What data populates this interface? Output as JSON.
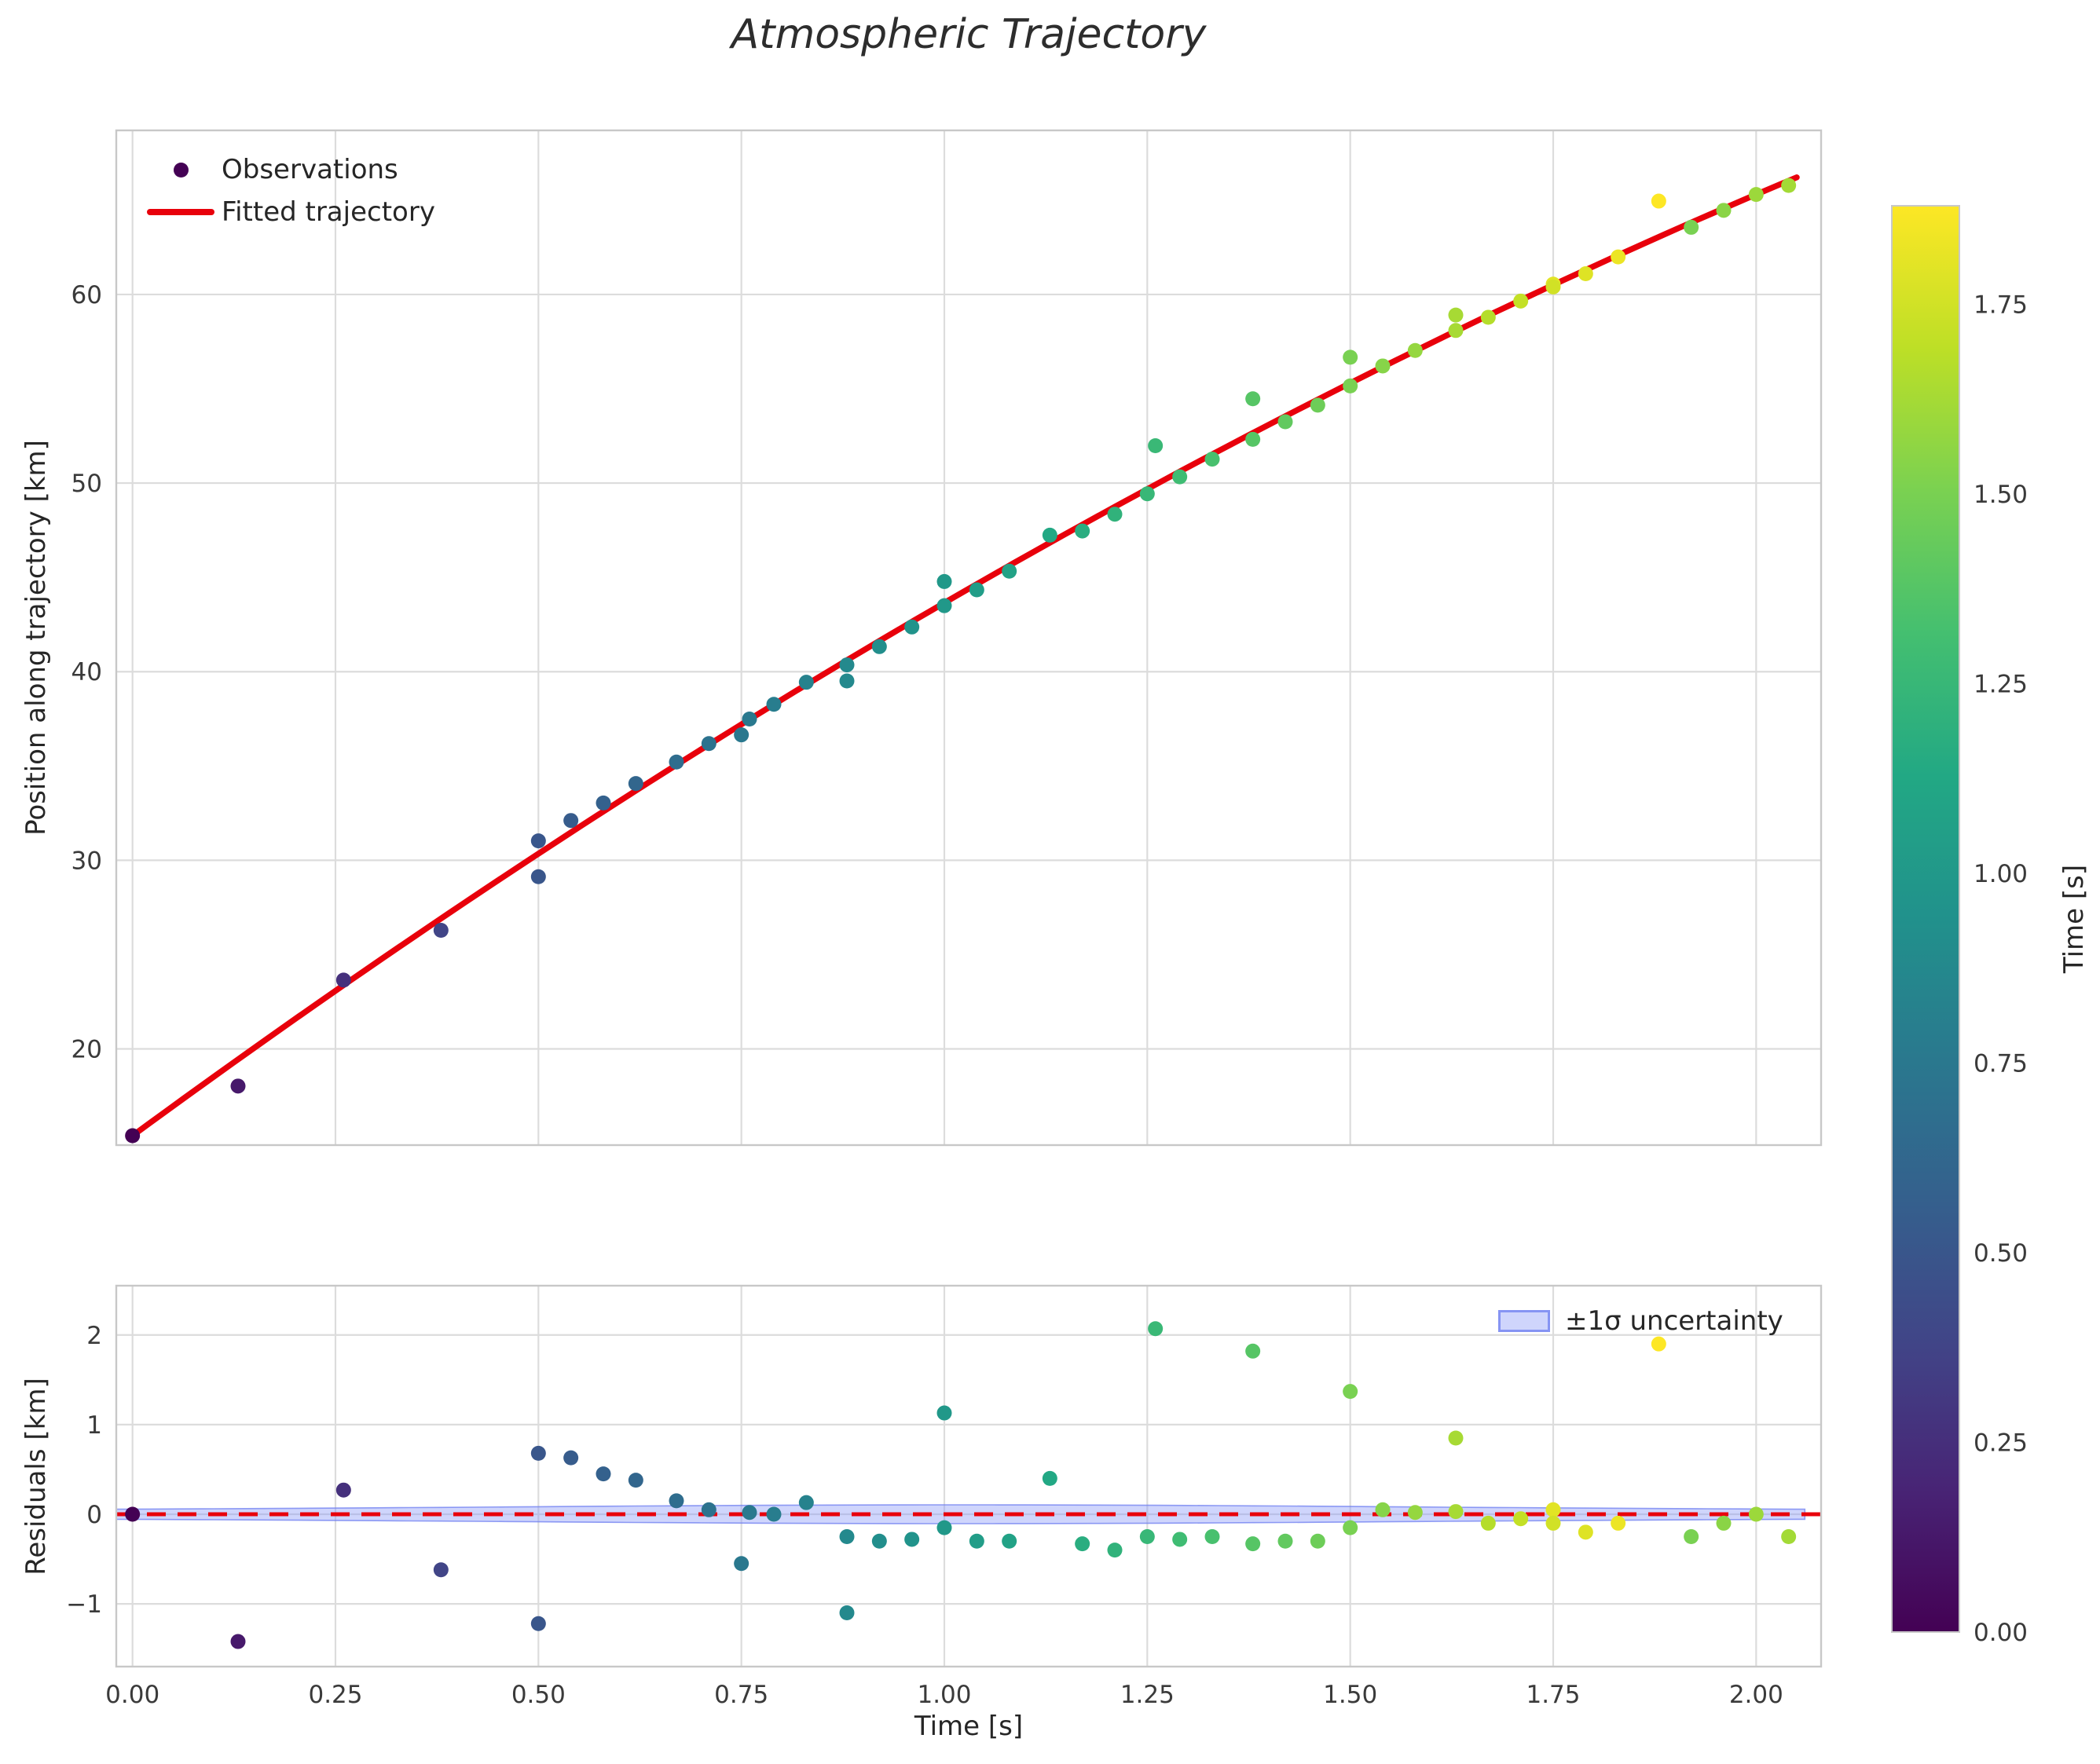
{
  "chart_data": {
    "type": "scatter",
    "title": "Atmospheric Trajectory",
    "xlabel": "Time [s]",
    "xticks": [
      0.0,
      0.25,
      0.5,
      0.75,
      1.0,
      1.25,
      1.5,
      1.75,
      2.0
    ],
    "xlim": [
      -0.02,
      2.08
    ],
    "main": {
      "ylabel": "Position along trajectory [km]",
      "yticks": [
        20,
        30,
        40,
        50,
        60
      ],
      "ylim": [
        14.9,
        68.7
      ],
      "legend": [
        "Observations",
        "Fitted trajectory"
      ],
      "fit": {
        "model": "quadratic",
        "coeffs_km": [
          15.4,
          31.55,
          -3.3
        ],
        "t_range_s": [
          0.0,
          2.05
        ],
        "color": "#e8000b"
      }
    },
    "residuals": {
      "ylabel": "Residuals [km]",
      "yticks": [
        -1,
        0,
        1,
        2
      ],
      "ylim": [
        -1.7,
        2.55
      ],
      "legend": "±1σ uncertainty",
      "zero_line": {
        "y": 0,
        "style": "dashed",
        "color": "#e8000b"
      },
      "band": {
        "center_km": 0,
        "halfwidth_min_km": 0.045,
        "halfwidth_max_km": 0.105,
        "peak_t_s": 1.02,
        "gauss_width_s": 0.8,
        "fill": "#8ea0f8",
        "edge": "#7b86f0"
      }
    },
    "colorbar": {
      "label": "Time [s]",
      "ticks": [
        0.0,
        0.25,
        0.5,
        0.75,
        1.0,
        1.25,
        1.5,
        1.75
      ],
      "vmin": 0.0,
      "vmax": 1.88,
      "colormap": "viridis"
    },
    "points": {
      "columns": [
        "time_s",
        "position_km",
        "residual_km",
        "color_time_s"
      ],
      "rows": [
        [
          0.0,
          15.4,
          0.0,
          0.0
        ],
        [
          0.13,
          18.03,
          -1.42,
          0.13
        ],
        [
          0.26,
          23.65,
          0.27,
          0.26
        ],
        [
          0.38,
          26.29,
          -0.62,
          0.38
        ],
        [
          0.5,
          29.13,
          -1.22,
          0.5
        ],
        [
          0.5,
          31.03,
          0.68,
          0.5
        ],
        [
          0.54,
          32.11,
          0.63,
          0.54
        ],
        [
          0.58,
          33.04,
          0.45,
          0.58
        ],
        [
          0.62,
          34.07,
          0.38,
          0.62
        ],
        [
          0.67,
          35.21,
          0.15,
          0.67
        ],
        [
          0.71,
          36.19,
          0.05,
          0.71
        ],
        [
          0.75,
          36.65,
          -0.55,
          0.75
        ],
        [
          0.76,
          37.49,
          0.02,
          0.76
        ],
        [
          0.79,
          38.27,
          0.0,
          0.79
        ],
        [
          0.83,
          39.44,
          0.13,
          0.83
        ],
        [
          0.88,
          39.51,
          -1.1,
          0.88
        ],
        [
          0.88,
          40.36,
          -0.25,
          0.88
        ],
        [
          0.92,
          41.33,
          -0.3,
          0.92
        ],
        [
          0.96,
          42.37,
          -0.28,
          0.96
        ],
        [
          1.0,
          43.5,
          -0.15,
          1.0
        ],
        [
          1.0,
          44.78,
          1.13,
          1.0
        ],
        [
          1.04,
          44.34,
          -0.3,
          1.04
        ],
        [
          1.08,
          45.33,
          -0.3,
          1.08
        ],
        [
          1.13,
          47.24,
          0.4,
          1.13
        ],
        [
          1.17,
          47.46,
          -0.33,
          1.17
        ],
        [
          1.21,
          48.35,
          -0.4,
          1.21
        ],
        [
          1.25,
          49.43,
          -0.25,
          1.25
        ],
        [
          1.26,
          51.98,
          2.07,
          1.26
        ],
        [
          1.29,
          50.33,
          -0.28,
          1.29
        ],
        [
          1.33,
          51.27,
          -0.25,
          1.33
        ],
        [
          1.38,
          52.32,
          -0.33,
          1.38
        ],
        [
          1.38,
          54.47,
          1.82,
          1.38
        ],
        [
          1.42,
          53.25,
          -0.3,
          1.42
        ],
        [
          1.46,
          54.13,
          -0.3,
          1.46
        ],
        [
          1.5,
          55.15,
          -0.15,
          1.5
        ],
        [
          1.5,
          56.67,
          1.37,
          1.5
        ],
        [
          1.54,
          56.21,
          0.05,
          1.54
        ],
        [
          1.58,
          57.03,
          0.02,
          1.58
        ],
        [
          1.63,
          58.09,
          0.03,
          1.63
        ],
        [
          1.63,
          58.91,
          0.85,
          1.63
        ],
        [
          1.67,
          58.79,
          -0.1,
          1.67
        ],
        [
          1.71,
          59.65,
          -0.05,
          1.71
        ],
        [
          1.75,
          60.55,
          0.05,
          1.8
        ],
        [
          1.75,
          60.4,
          -0.1,
          1.75
        ],
        [
          1.79,
          61.1,
          -0.2,
          1.79
        ],
        [
          1.83,
          61.99,
          -0.1,
          1.83
        ],
        [
          1.88,
          64.95,
          1.9,
          1.88
        ],
        [
          1.92,
          63.56,
          -0.25,
          1.5
        ],
        [
          1.96,
          64.46,
          -0.1,
          1.55
        ],
        [
          2.0,
          65.3,
          0.0,
          1.6
        ],
        [
          2.04,
          65.78,
          -0.25,
          1.62
        ]
      ]
    }
  },
  "style": {
    "grid": "#dcdcdc",
    "spine": "#c8c8c8",
    "tick_text": "#3a3a3a",
    "text": "#262626",
    "fit_red": "#e8000b",
    "legend_marker": "#440154",
    "band_fill": "rgba(135,150,248,0.40)",
    "band_edge": "rgba(110,125,240,0.75)",
    "viridis_stops": [
      [
        0.0,
        "#440154"
      ],
      [
        0.1,
        "#482475"
      ],
      [
        0.2,
        "#414487"
      ],
      [
        0.3,
        "#355f8d"
      ],
      [
        0.4,
        "#2a788e"
      ],
      [
        0.5,
        "#21918c"
      ],
      [
        0.6,
        "#22a884"
      ],
      [
        0.7,
        "#44bf70"
      ],
      [
        0.8,
        "#7ad151"
      ],
      [
        0.9,
        "#bddf26"
      ],
      [
        1.0,
        "#fde725"
      ]
    ]
  }
}
